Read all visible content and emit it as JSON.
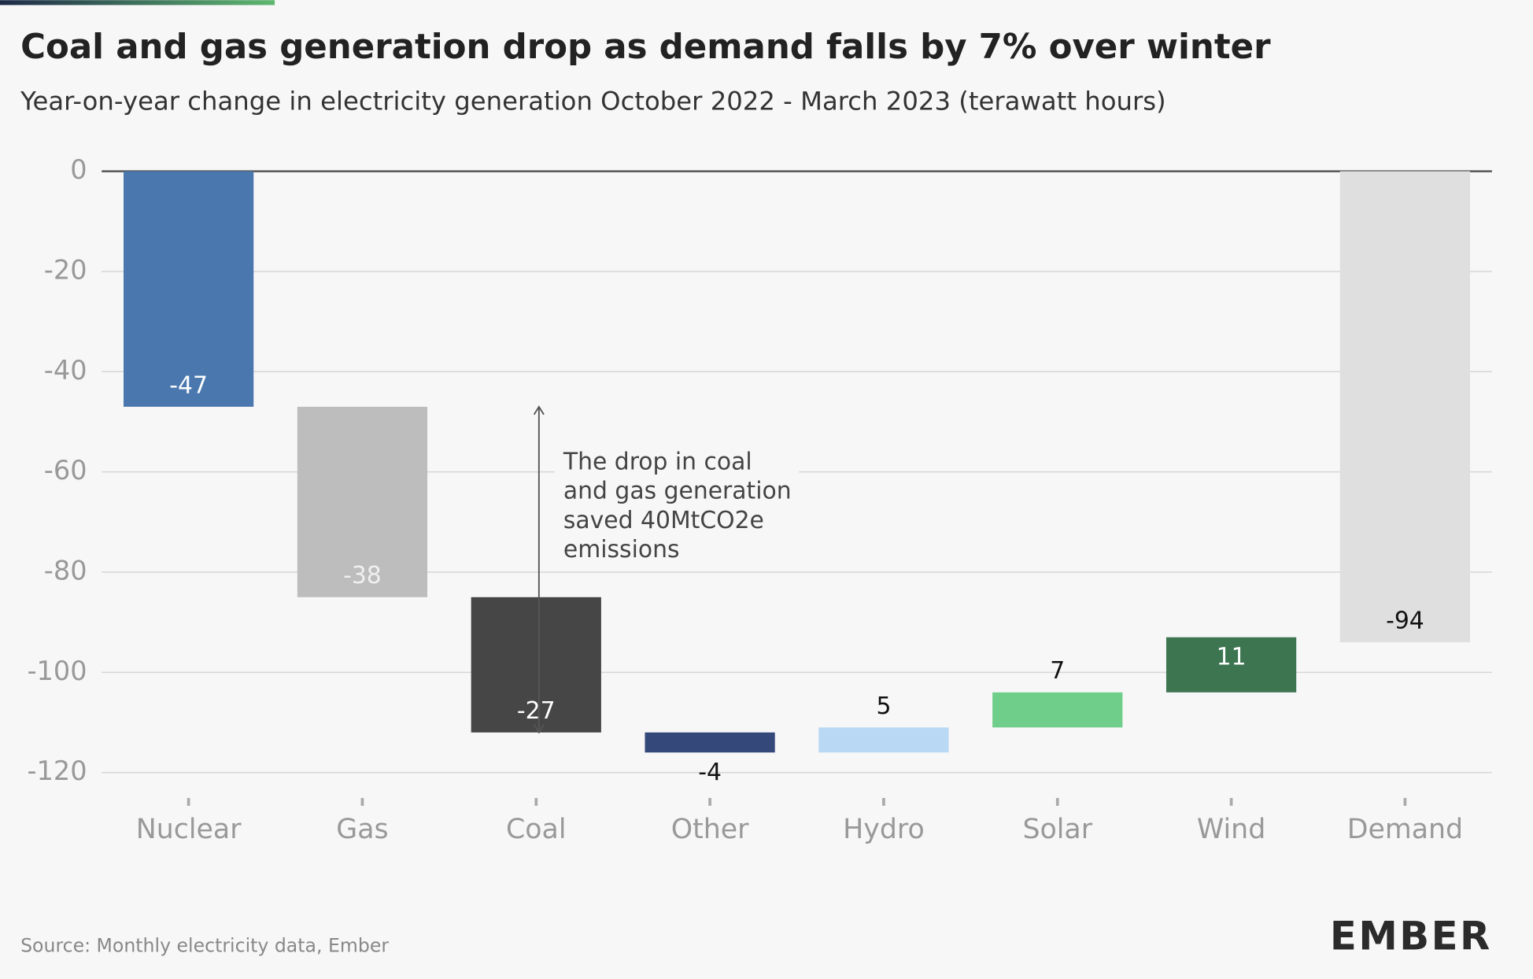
{
  "chart_data": {
    "type": "waterfall",
    "title": "Coal and gas generation drop as demand falls by 7% over winter",
    "subtitle": "Year-on-year change in electricity generation October 2022 - March 2023 (terawatt hours)",
    "categories": [
      "Nuclear",
      "Gas",
      "Coal",
      "Other",
      "Hydro",
      "Solar",
      "Wind",
      "Demand"
    ],
    "values": [
      -47,
      -38,
      -27,
      -4,
      5,
      7,
      11,
      -94
    ],
    "is_total": [
      false,
      false,
      false,
      false,
      false,
      false,
      false,
      true
    ],
    "colors": [
      "#4a78ae",
      "#bdbdbd",
      "#464646",
      "#34497a",
      "#b9d8f3",
      "#6fcf8a",
      "#3d7551",
      "#dfdfdf"
    ],
    "label_colors": [
      "#ffffff",
      "#f0f0f0",
      "#ffffff",
      "#111111",
      "#111111",
      "#111111",
      "#ffffff",
      "#111111"
    ],
    "ylim": [
      -120,
      0
    ],
    "yticks": [
      0,
      -20,
      -40,
      -60,
      -80,
      -100,
      -120
    ],
    "grid": true,
    "annotation": [
      "The drop in coal",
      "and gas generation",
      "saved 40MtCO2e",
      "emissions"
    ],
    "source": "Source: Monthly electricity data, Ember",
    "logo": "EMBER"
  }
}
